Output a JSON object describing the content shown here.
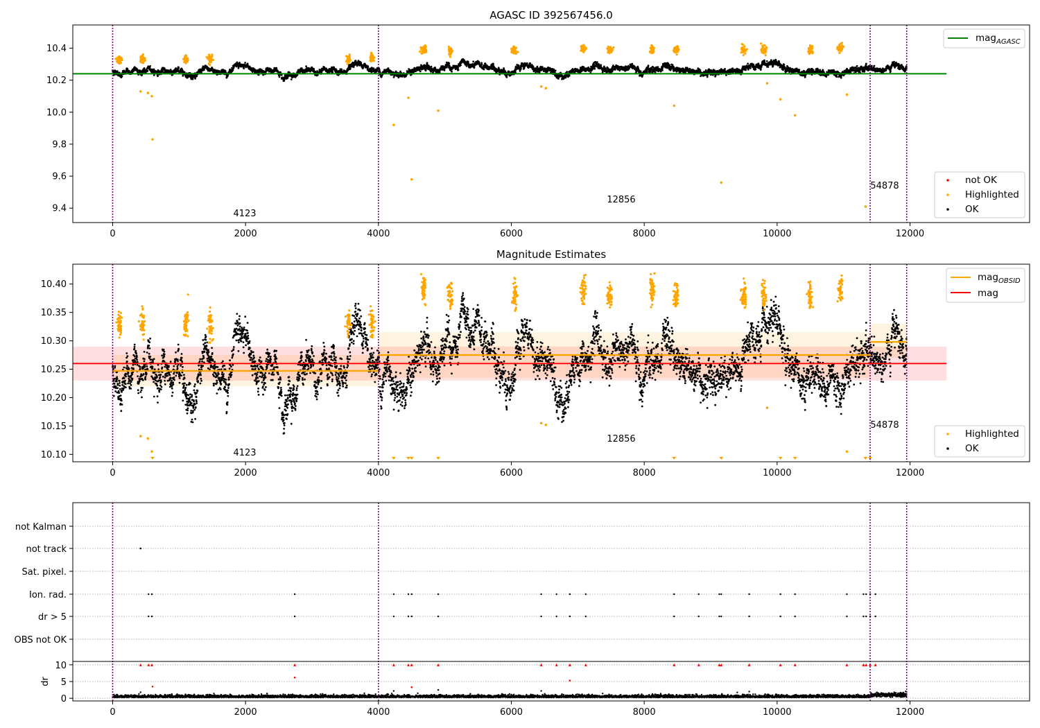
{
  "colors": {
    "ok": "#000000",
    "highlighted": "#ffa500",
    "not_ok": "#ff0000",
    "mag_agasc": "#008000",
    "mag_obsid": "#ffa500",
    "mag": "#ff0000",
    "boundary": "#800080",
    "mag_band": "#ff0000",
    "obsid_band": "#ffa500"
  },
  "chart_data": [
    {
      "type": "scatter",
      "title": "AGASC ID 392567456.0",
      "xlim": [
        -600,
        13800
      ],
      "ylim": [
        9.31,
        10.545
      ],
      "xticks": [
        "0",
        "2000",
        "4000",
        "6000",
        "8000",
        "10000",
        "12000"
      ],
      "yticks": [
        "9.4",
        "9.6",
        "9.8",
        "10.0",
        "10.2",
        "10.4"
      ],
      "grid": false,
      "legend_upper": {
        "placement": "upper-right",
        "entries": [
          {
            "base": "mag",
            "sub": "AGASC"
          }
        ]
      },
      "legend_lower": {
        "placement": "lower-right",
        "entries": [
          "not OK",
          "Highlighted",
          "OK"
        ]
      },
      "obsid_labels": [
        "4123",
        "12856",
        "54878"
      ],
      "obsid_boundaries": [
        0,
        4000,
        11400,
        11950
      ],
      "mag_agasc": 10.24,
      "segments": [
        {
          "x": [
            0,
            4000
          ],
          "base": 10.245,
          "noise": 0.03
        },
        {
          "x": [
            4000,
            11400
          ],
          "base": 10.262,
          "noise": 0.035
        },
        {
          "x": [
            11400,
            11950
          ],
          "base": 10.285,
          "noise": 0.03
        }
      ],
      "highlighted_clusters": [
        {
          "x": 100,
          "y": 10.33
        },
        {
          "x": 450,
          "y": 10.33
        },
        {
          "x": 1100,
          "y": 10.33
        },
        {
          "x": 1470,
          "y": 10.33
        },
        {
          "x": 3550,
          "y": 10.33
        },
        {
          "x": 3900,
          "y": 10.34
        },
        {
          "x": 4680,
          "y": 10.39
        },
        {
          "x": 5080,
          "y": 10.38
        },
        {
          "x": 6050,
          "y": 10.39
        },
        {
          "x": 7080,
          "y": 10.4
        },
        {
          "x": 7480,
          "y": 10.39
        },
        {
          "x": 8120,
          "y": 10.39
        },
        {
          "x": 8480,
          "y": 10.39
        },
        {
          "x": 9500,
          "y": 10.39
        },
        {
          "x": 9800,
          "y": 10.39
        },
        {
          "x": 10500,
          "y": 10.39
        },
        {
          "x": 10950,
          "y": 10.4
        }
      ],
      "highlighted_outliers": [
        {
          "x": 420,
          "y": 10.13
        },
        {
          "x": 530,
          "y": 10.12
        },
        {
          "x": 590,
          "y": 10.1
        },
        {
          "x": 600,
          "y": 9.83
        },
        {
          "x": 4230,
          "y": 9.92
        },
        {
          "x": 4450,
          "y": 10.09
        },
        {
          "x": 4500,
          "y": 9.58
        },
        {
          "x": 4900,
          "y": 10.01
        },
        {
          "x": 6450,
          "y": 10.16
        },
        {
          "x": 6520,
          "y": 10.15
        },
        {
          "x": 8450,
          "y": 10.04
        },
        {
          "x": 9160,
          "y": 9.56
        },
        {
          "x": 9850,
          "y": 10.18
        },
        {
          "x": 10050,
          "y": 10.08
        },
        {
          "x": 10270,
          "y": 9.98
        },
        {
          "x": 11050,
          "y": 10.11
        },
        {
          "x": 11330,
          "y": 9.41
        }
      ]
    },
    {
      "type": "scatter",
      "title": "Magnitude Estimates",
      "xlim": [
        -600,
        13800
      ],
      "ylim": [
        10.087,
        10.435
      ],
      "xticks": [
        "0",
        "2000",
        "4000",
        "6000",
        "8000",
        "10000",
        "12000"
      ],
      "yticks": [
        "10.10",
        "10.15",
        "10.20",
        "10.25",
        "10.30",
        "10.35",
        "10.40"
      ],
      "grid": false,
      "legend_upper": {
        "placement": "upper-right",
        "entries": [
          {
            "base": "mag",
            "sub": "OBSID"
          },
          {
            "base": "mag",
            "sub": ""
          }
        ]
      },
      "legend_lower": {
        "placement": "lower-right",
        "entries": [
          "Highlighted",
          "OK"
        ]
      },
      "obsid_labels": [
        "4123",
        "12856",
        "54878"
      ],
      "mag": 10.26,
      "mag_band": [
        10.23,
        10.29
      ],
      "obsid_mags": [
        {
          "x": [
            0,
            4000
          ],
          "mag": 10.247,
          "band": [
            10.22,
            10.275
          ]
        },
        {
          "x": [
            4000,
            11400
          ],
          "mag": 10.275,
          "band": [
            10.235,
            10.315
          ]
        },
        {
          "x": [
            11400,
            11950
          ],
          "mag": 10.298,
          "band": [
            10.27,
            10.33
          ]
        }
      ],
      "segments": [
        {
          "x": [
            0,
            4000
          ],
          "base": 10.245,
          "noise": 0.03
        },
        {
          "x": [
            4000,
            11400
          ],
          "base": 10.262,
          "noise": 0.035
        },
        {
          "x": [
            11400,
            11950
          ],
          "base": 10.285,
          "noise": 0.03
        }
      ],
      "highlighted_clusters": [
        {
          "x": 100,
          "y": 10.33
        },
        {
          "x": 450,
          "y": 10.33
        },
        {
          "x": 1100,
          "y": 10.33
        },
        {
          "x": 1470,
          "y": 10.33
        },
        {
          "x": 3550,
          "y": 10.33
        },
        {
          "x": 3900,
          "y": 10.33
        },
        {
          "x": 4680,
          "y": 10.39
        },
        {
          "x": 5080,
          "y": 10.38
        },
        {
          "x": 6050,
          "y": 10.38
        },
        {
          "x": 7080,
          "y": 10.39
        },
        {
          "x": 7480,
          "y": 10.38
        },
        {
          "x": 8120,
          "y": 10.39
        },
        {
          "x": 8480,
          "y": 10.38
        },
        {
          "x": 9500,
          "y": 10.38
        },
        {
          "x": 9800,
          "y": 10.38
        },
        {
          "x": 10500,
          "y": 10.38
        },
        {
          "x": 10950,
          "y": 10.39
        }
      ],
      "highlighted_outliers": [
        {
          "x": 420,
          "y": 10.132
        },
        {
          "x": 530,
          "y": 10.128
        },
        {
          "x": 590,
          "y": 10.105
        },
        {
          "x": 6450,
          "y": 10.155
        },
        {
          "x": 6520,
          "y": 10.152
        },
        {
          "x": 9850,
          "y": 10.182
        },
        {
          "x": 11050,
          "y": 10.105
        }
      ],
      "offscale_low_x": [
        600,
        4230,
        4450,
        4500,
        4900,
        8450,
        9160,
        10050,
        10270,
        11330,
        11400
      ]
    },
    {
      "type": "scatter",
      "title": "",
      "xlim": [
        -600,
        13800
      ],
      "xticks": [
        "0",
        "2000",
        "4000",
        "6000",
        "8000",
        "10000",
        "12000"
      ],
      "flag_rows": [
        "not Kalman",
        "not track",
        "Sat. pixel.",
        "Ion. rad.",
        "dr > 5",
        "OBS not OK"
      ],
      "grid": "horizontal-dotted",
      "flags": {
        "not track": [
          420
        ],
        "ion_dr": [
          540,
          590,
          2740,
          4230,
          4450,
          4500,
          4900,
          6450,
          6680,
          6880,
          7120,
          8450,
          8820,
          9130,
          9160,
          9580,
          10050,
          10270,
          11050,
          11300,
          11340,
          11400,
          11480
        ]
      },
      "dr": {
        "ylabel": "dr",
        "yticks": [
          "0",
          "5",
          "10"
        ],
        "ylim": [
          -0.8,
          10.8
        ],
        "clipped_x": [
          420,
          540,
          590,
          2740,
          4230,
          4450,
          4500,
          4900,
          6450,
          6680,
          6880,
          7120,
          8450,
          8820,
          9130,
          9160,
          9580,
          10050,
          10270,
          11050,
          11300,
          11340,
          11400,
          11480
        ],
        "red_points": [
          {
            "x": 2740,
            "y": 6.2
          },
          {
            "x": 600,
            "y": 3.5
          },
          {
            "x": 4500,
            "y": 3.3
          },
          {
            "x": 6880,
            "y": 5.3
          }
        ],
        "black_points": [
          {
            "x": 420,
            "y": 1.8
          },
          {
            "x": 4230,
            "y": 2.2
          },
          {
            "x": 4900,
            "y": 2.5
          },
          {
            "x": 6450,
            "y": 2.2
          },
          {
            "x": 9580,
            "y": 2.0
          }
        ]
      }
    }
  ]
}
